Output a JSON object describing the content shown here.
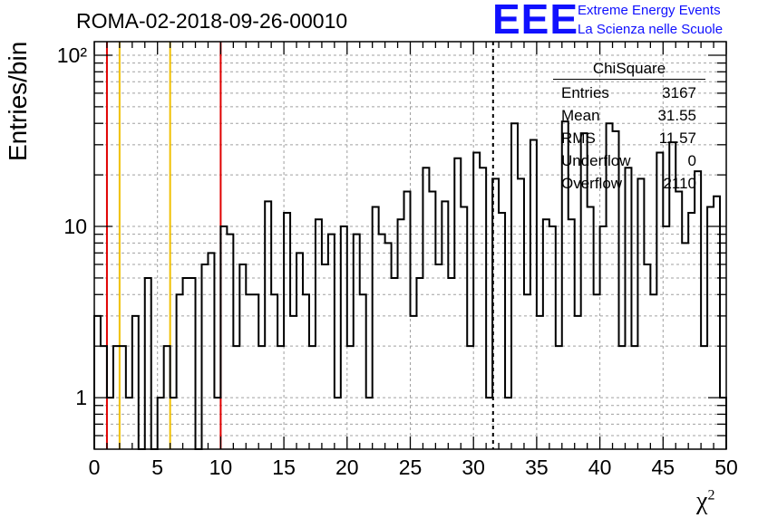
{
  "header": {
    "run_title": "ROMA-02-2018-09-26-00010",
    "logo_text": "EEE",
    "logo_line1": "Extreme Energy Events",
    "logo_line2": "La Scienza nelle Scuole"
  },
  "stats_box": {
    "title": "ChiSquare",
    "rows": [
      {
        "label": "Entries",
        "value": "3167"
      },
      {
        "label": "Mean",
        "value": "31.55"
      },
      {
        "label": "RMS",
        "value": "11.57"
      },
      {
        "label": "Underflow",
        "value": "0"
      },
      {
        "label": "Overflow",
        "value": "2110"
      }
    ]
  },
  "colors": {
    "red_line": "#e00000",
    "yellow_line": "#f0c000",
    "grid": "#a0a0a0",
    "logo": "#1010ff"
  },
  "chart_data": {
    "type": "histogram",
    "xlabel": "χ",
    "xlabel_sup": "2",
    "ylabel": "Entries/bin",
    "xlim": [
      0,
      50
    ],
    "ylim": [
      0.5,
      120
    ],
    "log_y": true,
    "grid": true,
    "bin_width": 0.5,
    "x_ticks": [
      "0",
      "5",
      "10",
      "15",
      "20",
      "25",
      "30",
      "35",
      "40",
      "45",
      "50"
    ],
    "y_ticks": [
      {
        "value": 1,
        "label": "1"
      },
      {
        "value": 10,
        "label": "10"
      },
      {
        "value": 100,
        "label": "10²"
      }
    ],
    "bin_values": [
      3,
      2,
      1,
      2,
      2,
      1,
      3,
      0,
      5,
      0,
      1,
      2,
      1,
      4,
      5,
      5,
      0,
      6,
      7,
      1,
      10,
      9,
      2,
      6,
      4,
      4,
      2,
      14,
      4,
      2,
      12,
      3,
      7,
      4,
      2,
      11,
      6,
      9,
      1,
      10,
      2,
      9,
      4,
      1,
      13,
      9,
      8,
      5,
      11,
      16,
      3,
      5,
      22,
      16,
      6,
      14,
      5,
      25,
      13,
      2,
      27,
      22,
      1,
      19,
      12,
      1,
      40,
      19,
      4,
      32,
      3,
      11,
      10,
      2,
      41,
      11,
      3,
      35,
      13,
      4,
      10,
      40,
      36,
      2,
      22,
      2,
      19,
      6,
      4,
      27,
      10,
      31,
      16,
      8,
      12,
      21,
      2,
      13,
      15,
      1
    ],
    "vertical_lines": [
      {
        "x": 1,
        "color": "red"
      },
      {
        "x": 2,
        "color": "yellow"
      },
      {
        "x": 6,
        "color": "yellow"
      },
      {
        "x": 10,
        "color": "red"
      },
      {
        "x": 31.55,
        "color": "black",
        "style": "dashed"
      }
    ]
  }
}
